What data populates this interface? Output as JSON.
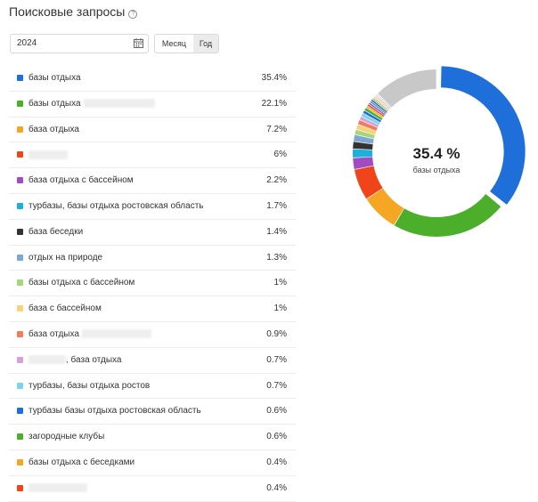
{
  "header": {
    "title": "Поисковые запросы",
    "help_icon": "?"
  },
  "filters": {
    "year_value": "2024",
    "period_month": "Месяц",
    "period_year": "Год",
    "active_period": "Год"
  },
  "queries": [
    {
      "label": "базы отдыха",
      "value": "35.4%",
      "color": "#1E6FD9",
      "blur_after": 0
    },
    {
      "label": "базы отдыха",
      "value": "22.1%",
      "color": "#4CAF2C",
      "blur_after": 80
    },
    {
      "label": "база отдыха",
      "value": "7.2%",
      "color": "#F5A623",
      "blur_after": 0
    },
    {
      "label": "",
      "value": "6%",
      "color": "#F0441A",
      "blur_before": 44
    },
    {
      "label": "база отдыха с бассейном",
      "value": "2.2%",
      "color": "#A24BC3",
      "blur_after": 0
    },
    {
      "label": "турбазы, базы отдыха ростовская область",
      "value": "1.7%",
      "color": "#1FB0D9",
      "blur_after": 0
    },
    {
      "label": "база беседки",
      "value": "1.4%",
      "color": "#333333",
      "blur_after": 0
    },
    {
      "label": "отдых на природе",
      "value": "1.3%",
      "color": "#7FA7D6",
      "blur_after": 0
    },
    {
      "label": "базы отдыха с бассейном",
      "value": "1%",
      "color": "#A5D67A",
      "blur_after": 0
    },
    {
      "label": "база с бассейном",
      "value": "1%",
      "color": "#F6D27A",
      "blur_after": 0
    },
    {
      "label": "база отдыха",
      "value": "0.9%",
      "color": "#F47A5C",
      "blur_after": 78
    },
    {
      "label": ", база отдыха",
      "value": "0.7%",
      "color": "#D7A0DA",
      "blur_before": 42
    },
    {
      "label": "турбазы, базы отдыха ростов",
      "value": "0.7%",
      "color": "#7DD3EE",
      "blur_after": 0
    },
    {
      "label": "турбазы базы отдыха ростовская область",
      "value": "0.6%",
      "color": "#1E6FD9",
      "blur_after": 0
    },
    {
      "label": "загородные клубы",
      "value": "0.6%",
      "color": "#4CAF2C",
      "blur_after": 0
    },
    {
      "label": "базы отдыха с беседками",
      "value": "0.4%",
      "color": "#F5A623",
      "blur_after": 0
    },
    {
      "label": "",
      "value": "0.4%",
      "color": "#F0441A",
      "blur_before": 66
    }
  ],
  "donut": {
    "center_value": "35.4 %",
    "center_label": "базы отдыха",
    "slices": [
      {
        "value": 35.4,
        "color": "#1E6FD9"
      },
      {
        "value": 22.1,
        "color": "#4CAF2C"
      },
      {
        "value": 7.2,
        "color": "#F5A623"
      },
      {
        "value": 6,
        "color": "#F0441A"
      },
      {
        "value": 2.2,
        "color": "#A24BC3"
      },
      {
        "value": 1.7,
        "color": "#1FB0D9"
      },
      {
        "value": 1.4,
        "color": "#333333"
      },
      {
        "value": 1.3,
        "color": "#7FA7D6"
      },
      {
        "value": 1,
        "color": "#A5D67A"
      },
      {
        "value": 1,
        "color": "#F6D27A"
      },
      {
        "value": 0.9,
        "color": "#F47A5C"
      },
      {
        "value": 0.7,
        "color": "#D7A0DA"
      },
      {
        "value": 0.7,
        "color": "#7DD3EE"
      },
      {
        "value": 0.6,
        "color": "#1E6FD9"
      },
      {
        "value": 0.6,
        "color": "#4CAF2C"
      },
      {
        "value": 0.4,
        "color": "#F5A623"
      },
      {
        "value": 0.4,
        "color": "#F0441A"
      },
      {
        "value": 0.4,
        "color": "#A24BC3"
      },
      {
        "value": 0.4,
        "color": "#1FB0D9"
      },
      {
        "value": 0.3,
        "color": "#333333"
      },
      {
        "value": 0.3,
        "color": "#7FA7D6"
      },
      {
        "value": 0.3,
        "color": "#A5D67A"
      },
      {
        "value": 0.3,
        "color": "#F6D27A"
      },
      {
        "value": 0.2,
        "color": "#F47A5C"
      },
      {
        "value": 0.2,
        "color": "#D7A0DA"
      },
      {
        "value": 0.2,
        "color": "#7DD3EE"
      },
      {
        "value": 12.2,
        "color": "#C8C8C8"
      }
    ]
  }
}
